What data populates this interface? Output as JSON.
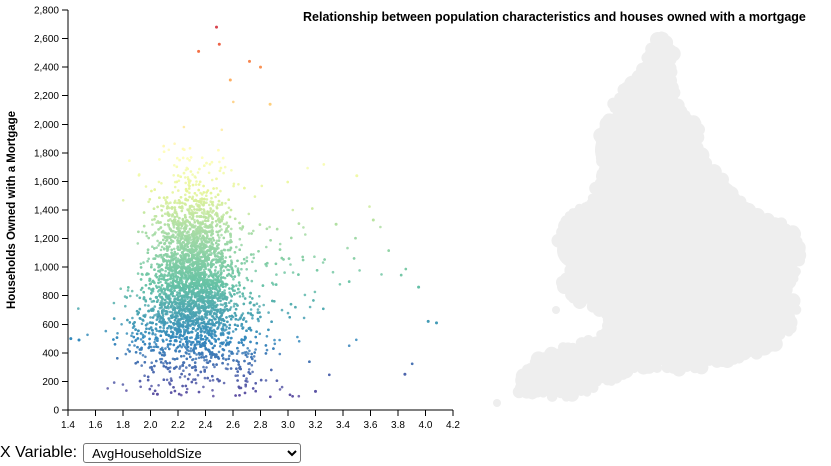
{
  "chart_data": {
    "type": "scatter",
    "title": "Relationship between population characteristics and houses owned with a mortgage",
    "xlabel": "",
    "ylabel": "Households Owned with a Mortgage",
    "xlim": [
      1.4,
      4.2
    ],
    "ylim": [
      0,
      2800
    ],
    "x_ticks": [
      "1.4",
      "1.6",
      "1.8",
      "2.0",
      "2.2",
      "2.4",
      "2.6",
      "2.8",
      "3.0",
      "3.2",
      "3.4",
      "3.6",
      "3.8",
      "4.0",
      "4.2"
    ],
    "y_ticks": [
      "0",
      "200",
      "400",
      "600",
      "800",
      "1,000",
      "1,200",
      "1,400",
      "1,600",
      "1,800",
      "2,000",
      "2,200",
      "2,400",
      "2,600",
      "2,800"
    ],
    "color_scale": "spectral-by-y",
    "grid": false,
    "legend": "none",
    "notable_points": [
      {
        "x": 2.48,
        "y": 2680
      },
      {
        "x": 2.5,
        "y": 2560
      },
      {
        "x": 2.35,
        "y": 2510
      },
      {
        "x": 2.72,
        "y": 2440
      },
      {
        "x": 2.8,
        "y": 2400
      },
      {
        "x": 2.58,
        "y": 2310
      },
      {
        "x": 2.87,
        "y": 2140
      },
      {
        "x": 3.35,
        "y": 1300
      },
      {
        "x": 3.62,
        "y": 1330
      },
      {
        "x": 4.08,
        "y": 610
      },
      {
        "x": 4.02,
        "y": 620
      },
      {
        "x": 3.85,
        "y": 250
      },
      {
        "x": 1.48,
        "y": 490
      },
      {
        "x": 1.42,
        "y": 500
      },
      {
        "x": 3.2,
        "y": 130
      },
      {
        "x": 2.05,
        "y": 110
      },
      {
        "x": 3.95,
        "y": 860
      },
      {
        "x": 3.5,
        "y": 1640
      }
    ],
    "cluster": {
      "x_center": 2.3,
      "x_spread": 0.15,
      "y_center": 900,
      "y_spread": 330,
      "approx_count": 5000
    }
  },
  "map": {
    "description_color": "#eeeeee"
  },
  "controls": {
    "x_label": "X Variable:",
    "x_selected": "AvgHouseholdSize"
  },
  "colors": {
    "low": "#5e4fa2",
    "mid": "#ffffbf",
    "high": "#d53e4f"
  }
}
